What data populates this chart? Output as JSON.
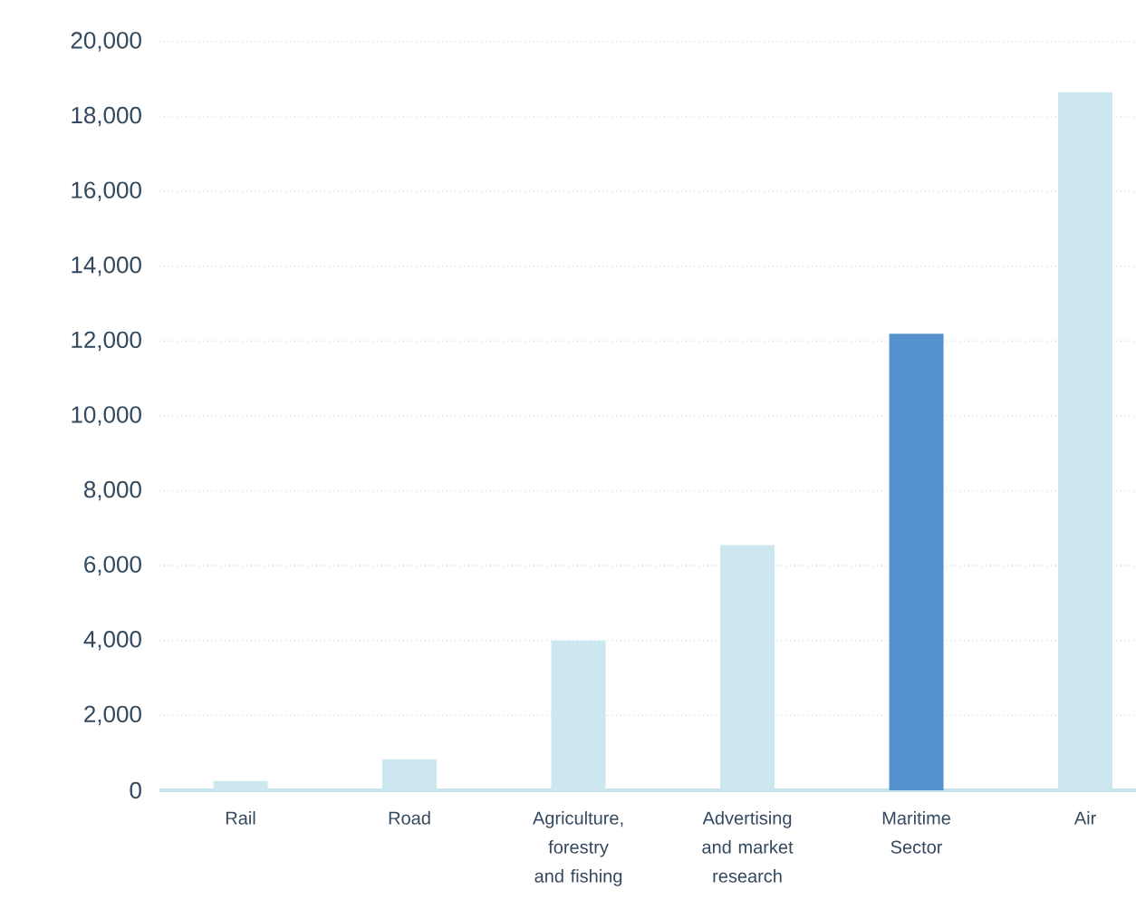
{
  "chart_data": {
    "type": "bar",
    "categories": [
      "Rail",
      "Road",
      "Agriculture, forestry and fishing",
      "Advertising and market research",
      "Maritime Sector",
      "Air"
    ],
    "values": [
      250,
      830,
      4000,
      6550,
      12200,
      18650
    ],
    "colors": [
      "#cce7ef",
      "#cce7ef",
      "#cce7ef",
      "#cce7ef",
      "#5591cd",
      "#cce7ef"
    ],
    "ylim": [
      0,
      20000
    ],
    "yticks": [
      {
        "value": 0,
        "label": "0"
      },
      {
        "value": 2000,
        "label": "2,000"
      },
      {
        "value": 4000,
        "label": "4,000"
      },
      {
        "value": 6000,
        "label": "6,000"
      },
      {
        "value": 8000,
        "label": "8,000"
      },
      {
        "value": 10000,
        "label": "10,000"
      },
      {
        "value": 12000,
        "label": "12,000"
      },
      {
        "value": 14000,
        "label": "14,000"
      },
      {
        "value": 16000,
        "label": "16,000"
      },
      {
        "value": 18000,
        "label": "18,000"
      },
      {
        "value": 20000,
        "label": "20,000"
      }
    ],
    "grid": "y"
  }
}
